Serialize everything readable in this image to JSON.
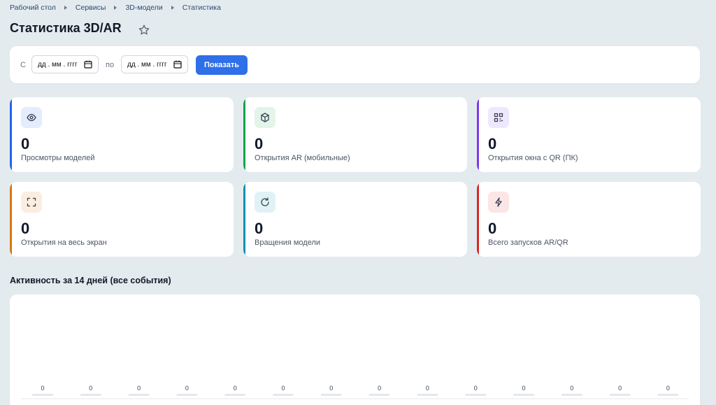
{
  "breadcrumb": [
    "Рабочий стол",
    "Сервисы",
    "3D-модели",
    "Статистика"
  ],
  "header": {
    "title": "Статистика 3D/AR"
  },
  "filter": {
    "from_label": "С",
    "from_placeholder": "дд . мм . гггг",
    "to_label": "по",
    "to_placeholder": "дд . мм . гггг",
    "button": "Показать"
  },
  "cards": [
    {
      "value": 0,
      "label": "Просмотры моделей",
      "color": "#2563eb"
    },
    {
      "value": 0,
      "label": "Открытия AR (мобильные)",
      "color": "#16a34a"
    },
    {
      "value": 0,
      "label": "Открытия окна с QR (ПК)",
      "color": "#7c3aed"
    },
    {
      "value": 0,
      "label": "Открытия на весь экран",
      "color": "#d97706"
    },
    {
      "value": 0,
      "label": "Вращения модели",
      "color": "#0891b2"
    },
    {
      "value": 0,
      "label": "Всего запусков AR/QR",
      "color": "#dc2626"
    }
  ],
  "activity": {
    "title": "Активность за 14 дней (все события)",
    "values": [
      0,
      0,
      0,
      0,
      0,
      0,
      0,
      0,
      0,
      0,
      0,
      0,
      0,
      0
    ]
  }
}
